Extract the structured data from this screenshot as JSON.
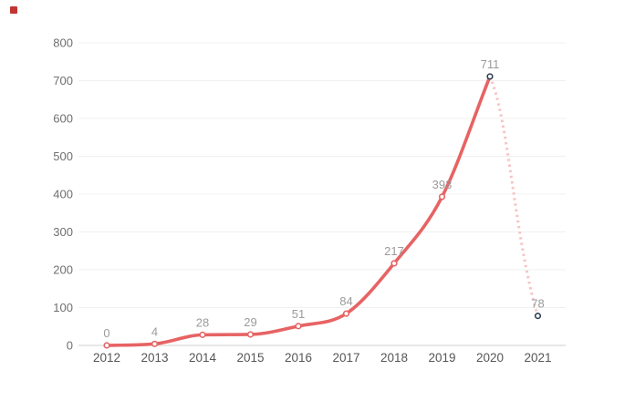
{
  "page": {
    "background": "#ffffff"
  },
  "legend": {
    "swatch_color": "#c23531"
  },
  "chart_data": {
    "type": "line",
    "title": "",
    "xlabel": "",
    "ylabel": "",
    "categories": [
      "2012",
      "2013",
      "2014",
      "2015",
      "2016",
      "2017",
      "2018",
      "2019",
      "2020",
      "2021"
    ],
    "series": [
      {
        "name": "",
        "values": [
          0,
          4,
          28,
          29,
          51,
          84,
          217,
          393,
          711,
          78
        ],
        "point_labels": [
          "0",
          "4",
          "28",
          "29",
          "51",
          "84",
          "217",
          "393",
          "711",
          "78"
        ]
      }
    ],
    "ylim": [
      0,
      800
    ],
    "ytick_interval": 100,
    "grid": true,
    "legend_position": "top-left",
    "style": {
      "smooth": true,
      "solid_until_index": 8,
      "dashed_segment": [
        8,
        9
      ],
      "line_color": "#e76363",
      "dashed_color": "#f6c3c3",
      "marker_fill": "#ffffff",
      "marker_stroke": "#e76363",
      "highlight_marker_stroke": "#2f3f52",
      "highlight_indices": [
        8,
        9
      ],
      "label_color": "#9b9b9b",
      "x_axis_label_color": "#565656",
      "y_axis_label_color": "#6f6f6f",
      "gridline_color": "#f0f0f0",
      "axis_line_color": "#cfcfcf"
    }
  }
}
